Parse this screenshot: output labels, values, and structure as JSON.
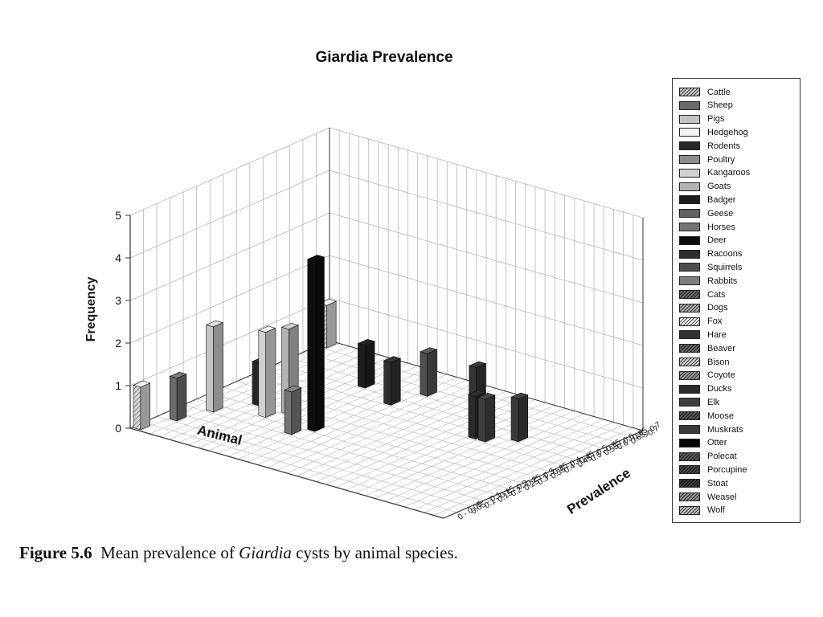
{
  "chart_data": {
    "type": "bar",
    "subtype": "3d-bar",
    "title": "Giardia Prevalence",
    "zlabel": "Frequency",
    "xlabel": "Animal",
    "ylabel": "Prevalence",
    "zlim": [
      0,
      5
    ],
    "z_ticks": [
      "0",
      "1",
      "2",
      "3",
      "4",
      "5"
    ],
    "grid": true,
    "legend_position": "right",
    "prevalence_categories": [
      "0 - 0.05",
      "0.05 - 0.1",
      "0.1 - 0.15",
      "0.15 - 0.2",
      "0.2 - 0.25",
      "0.25 - 0.3",
      "0.3 - 0.35",
      "0.35 - 0.4",
      "0.4 - 0.45",
      "0.45 - 0.5",
      "0.5 - 0.55",
      "0.55 - 0.6",
      "0.6 - 0.65",
      "0.65 - 0.7",
      ">0.7"
    ],
    "series": [
      {
        "name": "Cattle",
        "color": "#d4d4d4",
        "hatch": true,
        "values": [
          [
            0,
            1
          ],
          [
            14,
            1
          ]
        ]
      },
      {
        "name": "Sheep",
        "color": "#6a6a6a",
        "hatch": false,
        "values": [
          [
            2,
            1
          ]
        ]
      },
      {
        "name": "Pigs",
        "color": "#c4c4c4",
        "hatch": false,
        "values": [
          [
            4,
            2
          ]
        ]
      },
      {
        "name": "Hedgehog",
        "color": "#f4f4f4",
        "hatch": false,
        "values": []
      },
      {
        "name": "Rodents",
        "color": "#262626",
        "hatch": false,
        "values": [
          [
            6,
            1
          ]
        ]
      },
      {
        "name": "Poultry",
        "color": "#8c8c8c",
        "hatch": false,
        "values": []
      },
      {
        "name": "Kangaroos",
        "color": "#d0d0d0",
        "hatch": false,
        "values": [
          [
            5,
            2
          ]
        ]
      },
      {
        "name": "Goats",
        "color": "#b2b2b2",
        "hatch": false,
        "values": [
          [
            6,
            2
          ]
        ]
      },
      {
        "name": "Badger",
        "color": "#1e1e1e",
        "hatch": false,
        "values": [
          [
            11,
            1
          ]
        ]
      },
      {
        "name": "Geese",
        "color": "#626262",
        "hatch": false,
        "values": []
      },
      {
        "name": "Horses",
        "color": "#747474",
        "hatch": false,
        "values": [
          [
            4,
            1
          ]
        ]
      },
      {
        "name": "Deer",
        "color": "#0d0d0d",
        "hatch": false,
        "values": [
          [
            5,
            4
          ]
        ]
      },
      {
        "name": "Racoons",
        "color": "#2e2e2e",
        "hatch": false,
        "values": [
          [
            10,
            1
          ]
        ]
      },
      {
        "name": "Squirrels",
        "color": "#4e4e4e",
        "hatch": false,
        "values": [
          [
            12,
            1
          ]
        ]
      },
      {
        "name": "Rabbits",
        "color": "#7e7e7e",
        "hatch": false,
        "values": []
      },
      {
        "name": "Cats",
        "color": "#6e6e6e",
        "hatch": true,
        "values": []
      },
      {
        "name": "Dogs",
        "color": "#b4b4b4",
        "hatch": true,
        "values": []
      },
      {
        "name": "Fox",
        "color": "#ffffff",
        "hatch": true,
        "values": []
      },
      {
        "name": "Hare",
        "color": "#323232",
        "hatch": false,
        "values": [
          [
            12,
            1
          ]
        ]
      },
      {
        "name": "Beaver",
        "color": "#6a6a6a",
        "hatch": true,
        "values": []
      },
      {
        "name": "Bison",
        "color": "#d8d8d8",
        "hatch": true,
        "values": []
      },
      {
        "name": "Coyote",
        "color": "#9e9e9e",
        "hatch": true,
        "values": []
      },
      {
        "name": "Ducks",
        "color": "#2a2a2a",
        "hatch": false,
        "values": [
          [
            9,
            1
          ]
        ]
      },
      {
        "name": "Elk",
        "color": "#3e3e3e",
        "hatch": false,
        "values": [
          [
            9,
            1
          ]
        ]
      },
      {
        "name": "Moose",
        "color": "#5a5a5a",
        "hatch": true,
        "values": []
      },
      {
        "name": "Muskrats",
        "color": "#3a3a3a",
        "hatch": false,
        "values": [
          [
            10,
            1
          ]
        ]
      },
      {
        "name": "Otter",
        "color": "#050505",
        "hatch": false,
        "values": []
      },
      {
        "name": "Polecat",
        "color": "#5e5e5e",
        "hatch": true,
        "values": []
      },
      {
        "name": "Porcupine",
        "color": "#4a4a4a",
        "hatch": true,
        "values": []
      },
      {
        "name": "Stoat",
        "color": "#3c3c3c",
        "hatch": true,
        "values": []
      },
      {
        "name": "Weasel",
        "color": "#9a9a9a",
        "hatch": true,
        "values": []
      },
      {
        "name": "Wolf",
        "color": "#c6c6c6",
        "hatch": true,
        "values": []
      }
    ]
  },
  "caption": {
    "label": "Figure 5.6",
    "pre": "Mean prevalence of ",
    "italic": "Giardia",
    "post": " cysts by animal species."
  }
}
